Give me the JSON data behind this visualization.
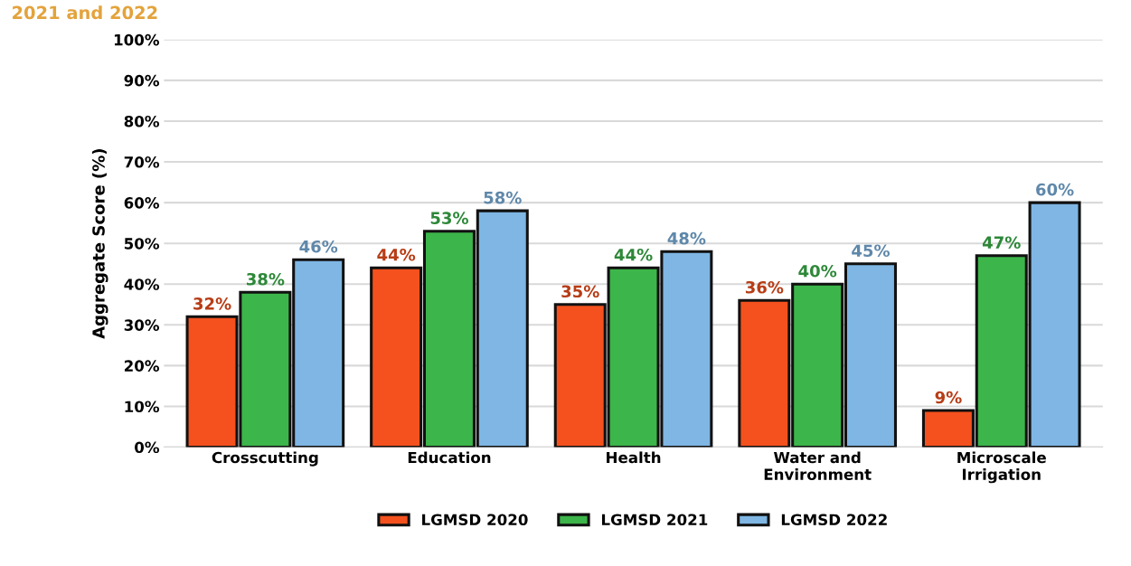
{
  "chart_data": {
    "type": "bar",
    "title": "2021 and 2022",
    "ylabel": "Aggregate Score (%)",
    "categories": [
      "Crosscutting",
      "Education",
      "Health",
      "Water and\nEnvironment",
      "Microscale\nIrrigation"
    ],
    "series": [
      {
        "name": "LGMSD 2020",
        "color": "#f4511e",
        "values": [
          32,
          44,
          35,
          36,
          9
        ],
        "value_labels": [
          "32%",
          "44%",
          "35%",
          "36%",
          "9%"
        ]
      },
      {
        "name": "LGMSD 2021",
        "color": "#3cb54a",
        "values": [
          38,
          53,
          44,
          40,
          47
        ],
        "value_labels": [
          "38%",
          "53%",
          "44%",
          "40%",
          "47%"
        ]
      },
      {
        "name": "LGMSD 2022",
        "color": "#7fb6e3",
        "values": [
          46,
          58,
          48,
          45,
          60
        ],
        "value_labels": [
          "46%",
          "58%",
          "48%",
          "45%",
          "60%"
        ]
      }
    ],
    "ylim": [
      0,
      100
    ],
    "yticks": [
      {
        "value": 0,
        "label": "0%"
      },
      {
        "value": 10,
        "label": "10%"
      },
      {
        "value": 20,
        "label": "20%"
      },
      {
        "value": 30,
        "label": "30%"
      },
      {
        "value": 40,
        "label": "40%"
      },
      {
        "value": 50,
        "label": "50%"
      },
      {
        "value": 60,
        "label": "60%"
      },
      {
        "value": 70,
        "label": "70%"
      },
      {
        "value": 80,
        "label": "80%"
      },
      {
        "value": 90,
        "label": "90%"
      },
      {
        "value": 100,
        "label": "100%"
      }
    ],
    "grid": "y",
    "legend": "bottom"
  }
}
